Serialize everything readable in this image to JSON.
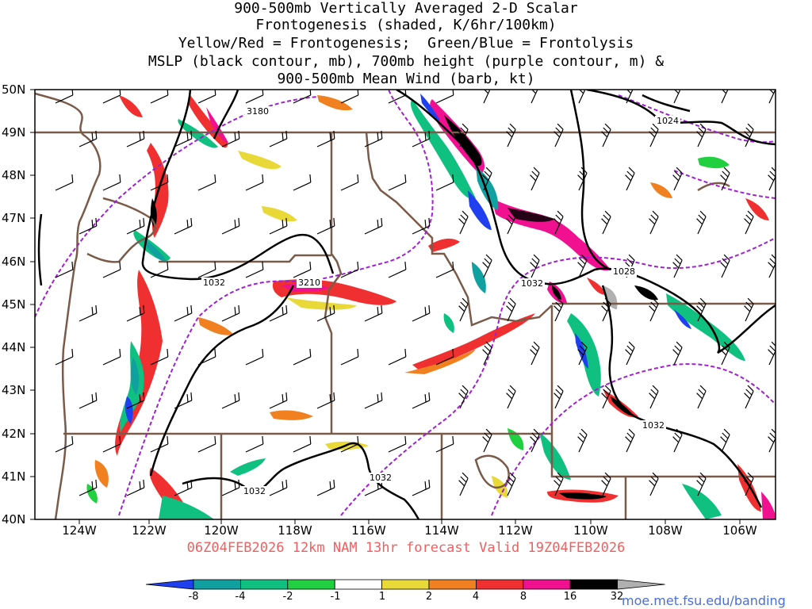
{
  "title_lines": [
    "900-500mb Vertically Averaged 2-D Scalar",
    "Frontogenesis (shaded, K/6hr/100km)",
    "Yellow/Red = Frontogenesis;  Green/Blue = Frontolysis",
    "MSLP (black contour, mb), 700mb height (purple contour, m) &",
    "900-500mb Mean Wind (barb, kt)"
  ],
  "lat_labels": [
    "50N",
    "49N",
    "48N",
    "47N",
    "46N",
    "45N",
    "44N",
    "43N",
    "42N",
    "41N",
    "40N"
  ],
  "lon_labels": [
    "124W",
    "122W",
    "120W",
    "118W",
    "116W",
    "114W",
    "112W",
    "110W",
    "108W",
    "106W"
  ],
  "contour_labels": {
    "height_3180": "3180",
    "height_3210": "3210",
    "mslp_1024": "1024",
    "mslp_1028": "1028",
    "mslp_1032_west": "1032",
    "mslp_1032_center": "1032",
    "mslp_1032_east": "1032",
    "mslp_1032_sw": "1032",
    "mslp_1032_south": "1032"
  },
  "valid_line": "06Z04FEB2026 12km NAM 13hr forecast Valid 19Z04FEB2026",
  "legend": {
    "ticks": [
      "-8",
      "-4",
      "-2",
      "-1",
      "1",
      "2",
      "4",
      "8",
      "16",
      "32"
    ],
    "colors": [
      "#2040f0",
      "#10a0a0",
      "#10c080",
      "#20d040",
      "#ffffff",
      "#e8d838",
      "#f08020",
      "#f03030",
      "#f01090",
      "#000000",
      "#b0b0b0"
    ]
  },
  "credit": "moe.met.fsu.edu/banding",
  "colors": {
    "mslp": "#000000",
    "height": "#a020d0",
    "borders": "#7a5a48",
    "valid_text": "#f06060"
  }
}
